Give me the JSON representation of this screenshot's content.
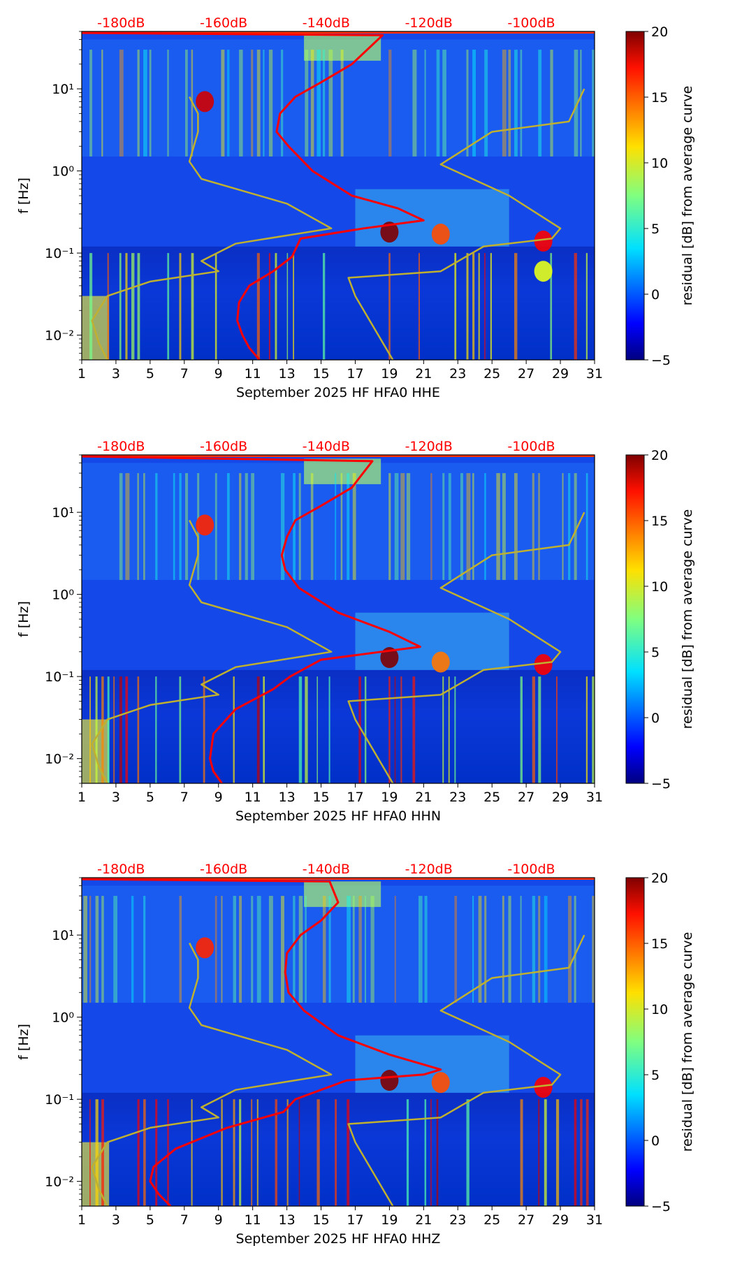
{
  "chart_data": [
    {
      "type": "heatmap",
      "title": "",
      "xlabel": "September 2025 HF HFA0  HHE",
      "ylabel": "f [Hz]",
      "x_ticks": [
        "1",
        "3",
        "5",
        "7",
        "9",
        "11",
        "13",
        "15",
        "17",
        "19",
        "21",
        "23",
        "25",
        "27",
        "29",
        "31"
      ],
      "xlim": [
        1,
        31
      ],
      "y_ticks": [
        "10⁻²",
        "10⁻¹",
        "10⁰",
        "10¹"
      ],
      "ylim": [
        0.005,
        50
      ],
      "top_ticks": [
        "-180dB",
        "-160dB",
        "-140dB",
        "-120dB",
        "-100dB"
      ],
      "colorbar": {
        "label": "residual [dB] from average curve",
        "ticks": [
          "20",
          "15",
          "10",
          "5",
          "0",
          "−5"
        ],
        "range": [
          -5,
          20
        ]
      },
      "series": [
        {
          "name": "mean PSD (red)",
          "color": "#ff0000",
          "points": [
            [
              11.4,
              0.005
            ],
            [
              10.8,
              0.007
            ],
            [
              10.4,
              0.01
            ],
            [
              10.1,
              0.015
            ],
            [
              10.2,
              0.025
            ],
            [
              10.8,
              0.04
            ],
            [
              12.2,
              0.06
            ],
            [
              13.3,
              0.09
            ],
            [
              13.8,
              0.15
            ],
            [
              17.5,
              0.2
            ],
            [
              21.0,
              0.25
            ],
            [
              19.5,
              0.35
            ],
            [
              16.8,
              0.5
            ],
            [
              14.5,
              1.0
            ],
            [
              13.1,
              2.0
            ],
            [
              12.4,
              3.0
            ],
            [
              12.6,
              5.0
            ],
            [
              13.5,
              8.0
            ],
            [
              15.0,
              12.0
            ],
            [
              16.8,
              20.0
            ],
            [
              18.6,
              45.0
            ],
            [
              1.0,
              48.0
            ]
          ]
        },
        {
          "name": "low model (olive)",
          "color": "#c0b030",
          "points": [
            [
              2.5,
              0.005
            ],
            [
              2.0,
              0.008
            ],
            [
              1.6,
              0.015
            ],
            [
              2.5,
              0.03
            ],
            [
              5.0,
              0.045
            ],
            [
              9.0,
              0.06
            ],
            [
              8.0,
              0.08
            ],
            [
              10.0,
              0.13
            ],
            [
              15.6,
              0.2
            ],
            [
              13.0,
              0.4
            ],
            [
              8.0,
              0.8
            ],
            [
              7.3,
              1.3
            ],
            [
              7.8,
              3.0
            ],
            [
              7.8,
              5.0
            ],
            [
              7.3,
              8.0
            ]
          ]
        },
        {
          "name": "high model (olive)",
          "color": "#c0b030",
          "points": [
            [
              19.2,
              0.005
            ],
            [
              17.0,
              0.03
            ],
            [
              16.6,
              0.05
            ],
            [
              22.0,
              0.06
            ],
            [
              24.5,
              0.12
            ],
            [
              28.5,
              0.15
            ],
            [
              29.0,
              0.2
            ],
            [
              26.0,
              0.5
            ],
            [
              22.0,
              1.2
            ],
            [
              25.0,
              3.0
            ],
            [
              29.5,
              4.0
            ],
            [
              30.4,
              10.0
            ]
          ]
        }
      ],
      "hotspots": [
        [
          19,
          0.18,
          20
        ],
        [
          22,
          0.17,
          15
        ],
        [
          28,
          0.14,
          17
        ],
        [
          28,
          0.06,
          10
        ],
        [
          8.2,
          7,
          18
        ]
      ]
    },
    {
      "type": "heatmap",
      "title": "",
      "xlabel": "September 2025 HF HFA0  HHN",
      "ylabel": "f [Hz]",
      "x_ticks": [
        "1",
        "3",
        "5",
        "7",
        "9",
        "11",
        "13",
        "15",
        "17",
        "19",
        "21",
        "23",
        "25",
        "27",
        "29",
        "31"
      ],
      "xlim": [
        1,
        31
      ],
      "y_ticks": [
        "10⁻²",
        "10⁻¹",
        "10⁰",
        "10¹"
      ],
      "ylim": [
        0.005,
        50
      ],
      "top_ticks": [
        "-180dB",
        "-160dB",
        "-140dB",
        "-120dB",
        "-100dB"
      ],
      "colorbar": {
        "label": "residual [dB] from average curve",
        "ticks": [
          "20",
          "15",
          "10",
          "5",
          "0",
          "−5"
        ],
        "range": [
          -5,
          20
        ]
      },
      "series": [
        {
          "name": "mean PSD (red)",
          "color": "#ff0000",
          "points": [
            [
              9.2,
              0.005
            ],
            [
              8.7,
              0.007
            ],
            [
              8.5,
              0.01
            ],
            [
              8.7,
              0.02
            ],
            [
              10.0,
              0.04
            ],
            [
              12.2,
              0.07
            ],
            [
              13.2,
              0.1
            ],
            [
              15.0,
              0.16
            ],
            [
              18.5,
              0.2
            ],
            [
              20.8,
              0.23
            ],
            [
              19.0,
              0.35
            ],
            [
              16.0,
              0.6
            ],
            [
              13.7,
              1.2
            ],
            [
              12.9,
              2.0
            ],
            [
              12.7,
              3.0
            ],
            [
              13.0,
              5.0
            ],
            [
              13.5,
              8.0
            ],
            [
              15.0,
              12.0
            ],
            [
              16.8,
              20.0
            ],
            [
              18.0,
              42.0
            ],
            [
              1.0,
              48.0
            ]
          ]
        },
        {
          "name": "low model (olive)",
          "color": "#c0b030",
          "points": [
            [
              2.5,
              0.005
            ],
            [
              2.0,
              0.008
            ],
            [
              1.6,
              0.015
            ],
            [
              2.5,
              0.03
            ],
            [
              5.0,
              0.045
            ],
            [
              9.0,
              0.06
            ],
            [
              8.0,
              0.08
            ],
            [
              10.0,
              0.13
            ],
            [
              15.6,
              0.2
            ],
            [
              13.0,
              0.4
            ],
            [
              8.0,
              0.8
            ],
            [
              7.3,
              1.3
            ],
            [
              7.8,
              3.0
            ],
            [
              7.8,
              5.0
            ],
            [
              7.3,
              8.0
            ]
          ]
        },
        {
          "name": "high model (olive)",
          "color": "#c0b030",
          "points": [
            [
              19.2,
              0.005
            ],
            [
              17.0,
              0.03
            ],
            [
              16.6,
              0.05
            ],
            [
              22.0,
              0.06
            ],
            [
              24.5,
              0.12
            ],
            [
              28.5,
              0.15
            ],
            [
              29.0,
              0.2
            ],
            [
              26.0,
              0.5
            ],
            [
              22.0,
              1.2
            ],
            [
              25.0,
              3.0
            ],
            [
              29.5,
              4.0
            ],
            [
              30.4,
              10.0
            ]
          ]
        }
      ],
      "hotspots": [
        [
          19,
          0.17,
          20
        ],
        [
          22,
          0.15,
          14
        ],
        [
          28,
          0.14,
          17
        ],
        [
          8.2,
          7,
          16
        ]
      ]
    },
    {
      "type": "heatmap",
      "title": "",
      "xlabel": "September 2025 HF HFA0  HHZ",
      "ylabel": "f [Hz]",
      "x_ticks": [
        "1",
        "3",
        "5",
        "7",
        "9",
        "11",
        "13",
        "15",
        "17",
        "19",
        "21",
        "23",
        "25",
        "27",
        "29",
        "31"
      ],
      "xlim": [
        1,
        31
      ],
      "y_ticks": [
        "10⁻²",
        "10⁻¹",
        "10⁰",
        "10¹"
      ],
      "ylim": [
        0.005,
        50
      ],
      "top_ticks": [
        "-180dB",
        "-160dB",
        "-140dB",
        "-120dB",
        "-100dB"
      ],
      "colorbar": {
        "label": "residual [dB] from average curve",
        "ticks": [
          "20",
          "15",
          "10",
          "5",
          "0",
          "−5"
        ],
        "range": [
          -5,
          20
        ]
      },
      "series": [
        {
          "name": "mean PSD (red)",
          "color": "#ff0000",
          "points": [
            [
              6.2,
              0.005
            ],
            [
              5.5,
              0.007
            ],
            [
              5.0,
              0.01
            ],
            [
              5.2,
              0.015
            ],
            [
              6.5,
              0.025
            ],
            [
              9.5,
              0.045
            ],
            [
              12.8,
              0.07
            ],
            [
              13.5,
              0.1
            ],
            [
              16.5,
              0.17
            ],
            [
              21.0,
              0.2
            ],
            [
              22.0,
              0.23
            ],
            [
              19.0,
              0.35
            ],
            [
              16.0,
              0.6
            ],
            [
              14.0,
              1.2
            ],
            [
              13.1,
              2.0
            ],
            [
              12.9,
              3.5
            ],
            [
              13.0,
              6.0
            ],
            [
              13.8,
              10.0
            ],
            [
              15.0,
              15.0
            ],
            [
              16.0,
              25.0
            ],
            [
              15.5,
              45.0
            ],
            [
              1.0,
              48.0
            ]
          ]
        },
        {
          "name": "low model (olive)",
          "color": "#c0b030",
          "points": [
            [
              2.5,
              0.005
            ],
            [
              2.0,
              0.008
            ],
            [
              1.6,
              0.015
            ],
            [
              2.5,
              0.03
            ],
            [
              5.0,
              0.045
            ],
            [
              9.0,
              0.06
            ],
            [
              8.0,
              0.08
            ],
            [
              10.0,
              0.13
            ],
            [
              15.6,
              0.2
            ],
            [
              13.0,
              0.4
            ],
            [
              8.0,
              0.8
            ],
            [
              7.3,
              1.3
            ],
            [
              7.8,
              3.0
            ],
            [
              7.8,
              5.0
            ],
            [
              7.3,
              8.0
            ]
          ]
        },
        {
          "name": "high model (olive)",
          "color": "#c0b030",
          "points": [
            [
              19.2,
              0.005
            ],
            [
              17.0,
              0.03
            ],
            [
              16.6,
              0.05
            ],
            [
              22.0,
              0.06
            ],
            [
              24.5,
              0.12
            ],
            [
              28.5,
              0.15
            ],
            [
              29.0,
              0.2
            ],
            [
              26.0,
              0.5
            ],
            [
              22.0,
              1.2
            ],
            [
              25.0,
              3.0
            ],
            [
              29.5,
              4.0
            ],
            [
              30.4,
              10.0
            ]
          ]
        }
      ],
      "hotspots": [
        [
          19,
          0.17,
          20
        ],
        [
          22,
          0.16,
          15
        ],
        [
          28,
          0.14,
          17
        ],
        [
          8.2,
          7,
          16
        ]
      ]
    }
  ]
}
